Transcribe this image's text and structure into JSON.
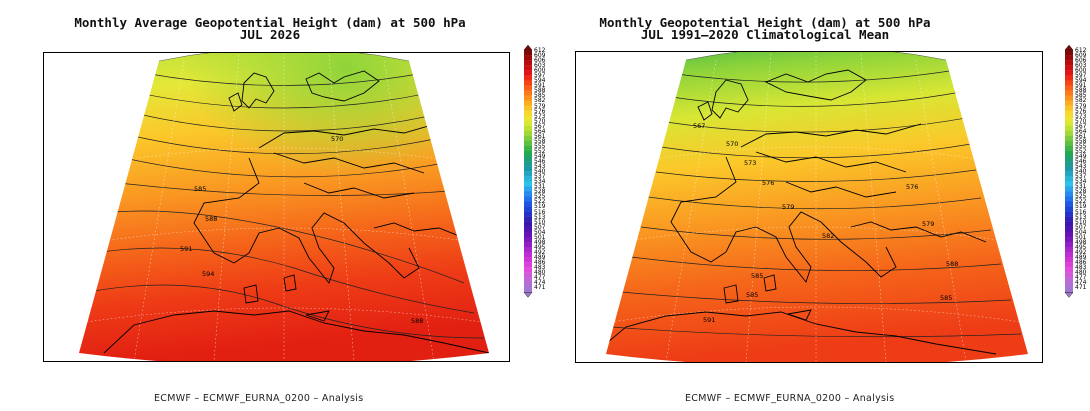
{
  "left_panel": {
    "title_line1": "Monthly Average Geopotential Height (dam) at 500 hPa",
    "title_line2": "JUL 2026",
    "footer": "ECMWF  –  ECMWF_EURNA_0200  –  Analysis",
    "contour_labels": [
      "570",
      "585",
      "588",
      "591",
      "588",
      "594",
      "588"
    ]
  },
  "right_panel": {
    "title_line1": "Monthly Geopotential Height (dam) at 500 hPa",
    "title_line2": "JUL 1991–2020 Climatological Mean",
    "footer": "ECMWF  –  ECMWF_EURNA_0200  –  Analysis",
    "contour_labels": [
      "567",
      "570",
      "573",
      "576",
      "576",
      "579",
      "579",
      "582",
      "585",
      "585",
      "588",
      "591",
      "585"
    ]
  },
  "colorbar": {
    "levels": [
      "612",
      "609",
      "606",
      "603",
      "600",
      "597",
      "594",
      "591",
      "588",
      "585",
      "582",
      "579",
      "576",
      "573",
      "570",
      "567",
      "564",
      "561",
      "558",
      "555",
      "552",
      "549",
      "546",
      "543",
      "540",
      "537",
      "534",
      "531",
      "528",
      "525",
      "522",
      "519",
      "516",
      "513",
      "510",
      "507",
      "504",
      "501",
      "498",
      "495",
      "492",
      "489",
      "486",
      "483",
      "480",
      "477",
      "474",
      "471"
    ],
    "colors": [
      "#7a0a0a",
      "#9a0a0a",
      "#b50c0c",
      "#cc1010",
      "#e01414",
      "#ee2a14",
      "#f44516",
      "#f86018",
      "#fa7a1c",
      "#fb9220",
      "#fcab24",
      "#fcc328",
      "#f8d82c",
      "#eee232",
      "#d8e834",
      "#bde236",
      "#9ed83a",
      "#7ccc3c",
      "#5cc040",
      "#3cb44a",
      "#26a852",
      "#1ea070",
      "#1e9c8c",
      "#1e98a6",
      "#22a4c2",
      "#2ab4d8",
      "#2ec2ea",
      "#2aa6ee",
      "#268aee",
      "#2270ea",
      "#1e58e2",
      "#1e44d6",
      "#2432c6",
      "#2e22b8",
      "#3a18ae",
      "#5014b0",
      "#6414b6",
      "#7a18bc",
      "#9020c4",
      "#a828ca",
      "#bc2ed0",
      "#d034d4",
      "#dc40d8",
      "#e04cdc",
      "#d25ad8",
      "#c068d6",
      "#b070d4",
      "#a078d0"
    ]
  }
}
